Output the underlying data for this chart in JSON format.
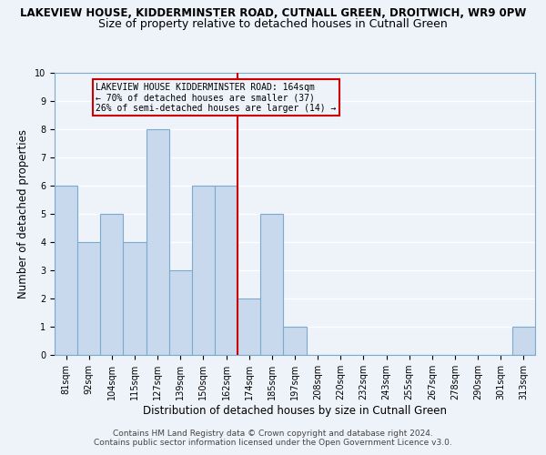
{
  "title_line1": "LAKEVIEW HOUSE, KIDDERMINSTER ROAD, CUTNALL GREEN, DROITWICH, WR9 0PW",
  "title_line2": "Size of property relative to detached houses in Cutnall Green",
  "xlabel": "Distribution of detached houses by size in Cutnall Green",
  "ylabel": "Number of detached properties",
  "categories": [
    "81sqm",
    "92sqm",
    "104sqm",
    "115sqm",
    "127sqm",
    "139sqm",
    "150sqm",
    "162sqm",
    "174sqm",
    "185sqm",
    "197sqm",
    "208sqm",
    "220sqm",
    "232sqm",
    "243sqm",
    "255sqm",
    "267sqm",
    "278sqm",
    "290sqm",
    "301sqm",
    "313sqm"
  ],
  "values": [
    6,
    4,
    5,
    4,
    8,
    3,
    6,
    6,
    2,
    5,
    1,
    0,
    0,
    0,
    0,
    0,
    0,
    0,
    0,
    0,
    1
  ],
  "bar_color": "#c9d9ed",
  "bar_edge_color": "#7aaace",
  "reference_line_x": 7,
  "reference_line_color": "#cc0000",
  "annotation_title": "LAKEVIEW HOUSE KIDDERMINSTER ROAD: 164sqm",
  "annotation_line1": "← 70% of detached houses are smaller (37)",
  "annotation_line2": "26% of semi-detached houses are larger (14) →",
  "annotation_box_color": "#cc0000",
  "ylim": [
    0,
    10
  ],
  "yticks": [
    0,
    1,
    2,
    3,
    4,
    5,
    6,
    7,
    8,
    9,
    10
  ],
  "footnote1": "Contains HM Land Registry data © Crown copyright and database right 2024.",
  "footnote2": "Contains public sector information licensed under the Open Government Licence v3.0.",
  "background_color": "#eef2f9",
  "grid_color": "#ffffff",
  "title_fontsize": 8.5,
  "subtitle_fontsize": 9,
  "xlabel_fontsize": 8.5,
  "ylabel_fontsize": 8.5,
  "tick_fontsize": 7,
  "annotation_fontsize": 7,
  "footnote_fontsize": 6.5
}
